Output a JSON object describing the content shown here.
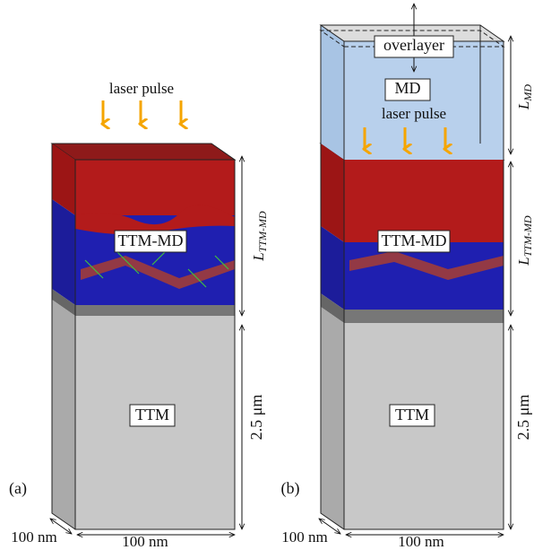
{
  "panel_a": {
    "panel": "(a)",
    "laser": "laser pulse",
    "ttm_md": "TTM-MD",
    "l_ttm_md": {
      "symbol": "L",
      "subscript": "TTM-MD"
    },
    "ttm": "TTM",
    "depth": "2.5 μm",
    "depth_width": "100 nm",
    "front_width": "100 nm"
  },
  "panel_b": {
    "panel": "(b)",
    "overlayer": "overlayer",
    "md": "MD",
    "l_md": {
      "symbol": "L",
      "subscript": "MD"
    },
    "laser": "laser pulse",
    "ttm_md": "TTM-MD",
    "l_ttm_md": {
      "symbol": "L",
      "subscript": "TTM-MD"
    },
    "ttm": "TTM",
    "depth": "2.5 μm",
    "depth_width": "100 nm",
    "front_width": "100 nm"
  }
}
